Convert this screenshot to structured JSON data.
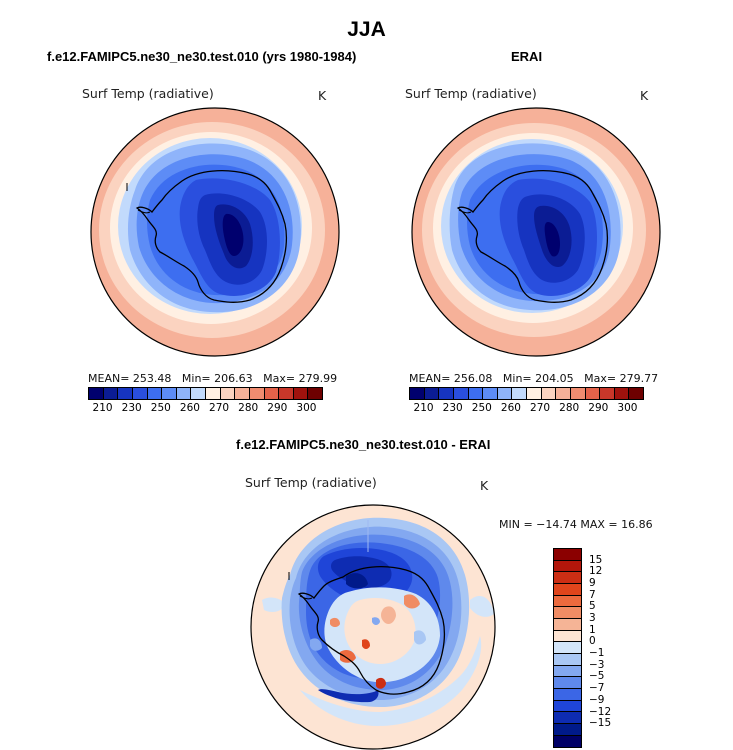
{
  "title": "JJA",
  "panels": [
    {
      "title": "f.e12.FAMIPC5.ne30_ne30.test.010 (yrs 1980-1984)",
      "field": "Surf Temp (radiative)",
      "units": "K",
      "mean_text": "MEAN= 253.48",
      "min_text": "Min= 206.63",
      "max_text": "Max= 279.99"
    },
    {
      "title": "ERAI",
      "field": "Surf Temp (radiative)",
      "units": "K",
      "mean_text": "MEAN= 256.08",
      "min_text": "Min= 204.05",
      "max_text": "Max= 279.77"
    },
    {
      "title": "f.e12.FAMIPC5.ne30_ne30.test.010 - ERAI",
      "field": "Surf Temp (radiative)",
      "units": "K",
      "minmax_text": "MIN = −14.74  MAX =   16.86"
    }
  ],
  "colorbar_abs": {
    "colors": [
      "#00006e",
      "#0b1c94",
      "#1634c0",
      "#2a4fde",
      "#3d6ef0",
      "#5d8cf6",
      "#8fb4fa",
      "#c2dafc",
      "#fff0e3",
      "#fbd3c0",
      "#f6b199",
      "#f08c70",
      "#e4624a",
      "#c8372a",
      "#a0120d",
      "#6e0000"
    ],
    "labels": [
      "210",
      "230",
      "250",
      "260",
      "270",
      "280",
      "290",
      "300"
    ]
  },
  "colorbar_diff": {
    "colors": [
      "#8b0000",
      "#b2160b",
      "#cc2e14",
      "#e0451c",
      "#ec6a3e",
      "#f08c64",
      "#f5b496",
      "#fde4d3",
      "#d3e5f9",
      "#a9c7f4",
      "#83a8f0",
      "#5f89ec",
      "#3b66e6",
      "#1f45d8",
      "#0e2cb2",
      "#001a8a",
      "#000066"
    ],
    "labels": [
      "15",
      "12",
      "9",
      "7",
      "5",
      "3",
      "1",
      "0",
      "−1",
      "−3",
      "−5",
      "−7",
      "−9",
      "−12",
      "−15"
    ]
  },
  "chart_data": [
    {
      "type": "heatmap",
      "title": "f.e12.FAMIPC5.ne30_ne30.test.010 (yrs 1980-1984)",
      "subtitle": "Surf Temp (radiative)",
      "units": "K",
      "projection": "south polar stereographic",
      "mean": 253.48,
      "min": 206.63,
      "max": 279.99,
      "levels": [
        210,
        230,
        250,
        260,
        270,
        280,
        290,
        300
      ]
    },
    {
      "type": "heatmap",
      "title": "ERAI",
      "subtitle": "Surf Temp (radiative)",
      "units": "K",
      "projection": "south polar stereographic",
      "mean": 256.08,
      "min": 204.05,
      "max": 279.77,
      "levels": [
        210,
        230,
        250,
        260,
        270,
        280,
        290,
        300
      ]
    },
    {
      "type": "heatmap",
      "title": "f.e12.FAMIPC5.ne30_ne30.test.010 - ERAI",
      "subtitle": "Surf Temp (radiative)",
      "units": "K",
      "projection": "south polar stereographic",
      "min": -14.74,
      "max": 16.86,
      "levels": [
        -15,
        -12,
        -9,
        -7,
        -5,
        -3,
        -1,
        0,
        1,
        3,
        5,
        7,
        9,
        12,
        15
      ]
    }
  ]
}
